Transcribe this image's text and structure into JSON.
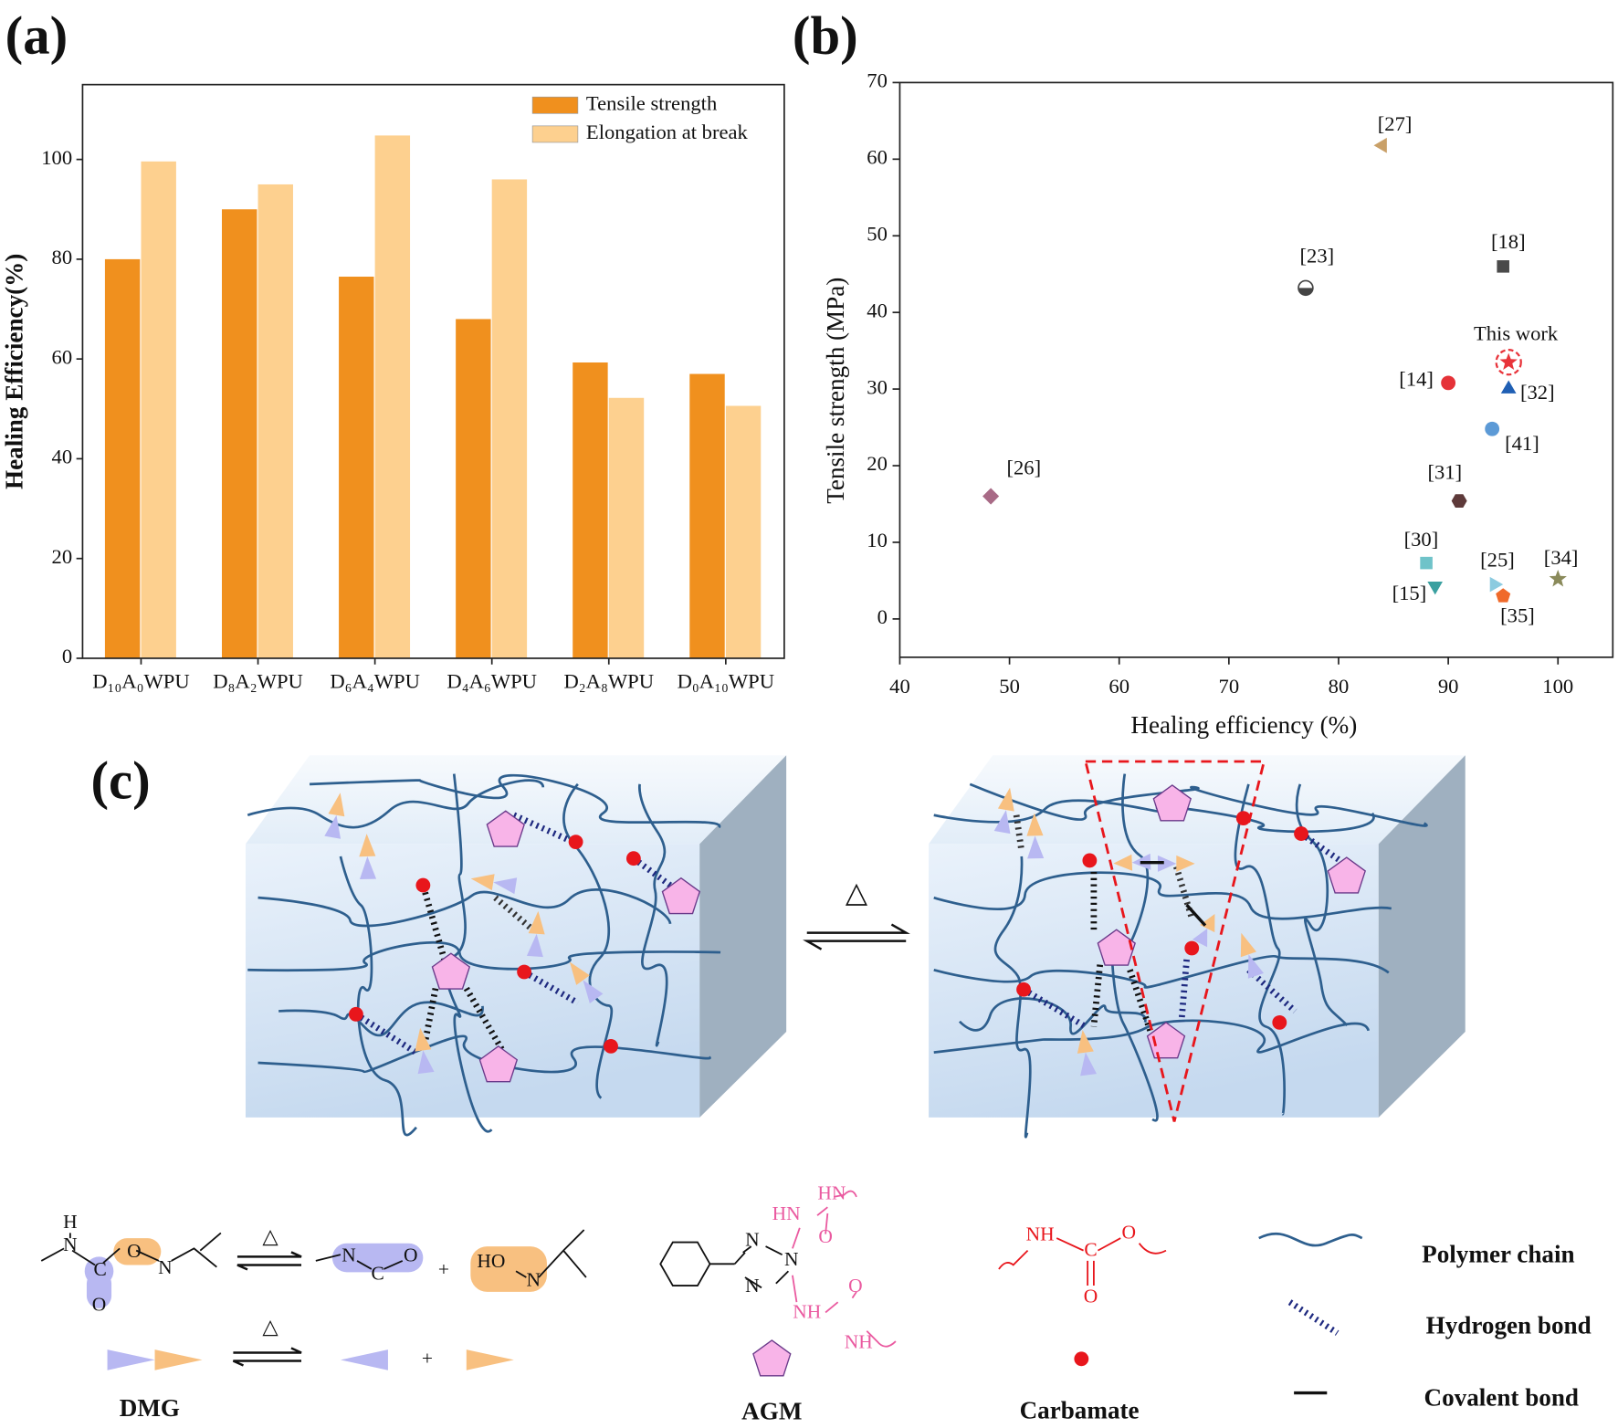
{
  "chart_data": [
    {
      "type": "bar",
      "panel_label": "(a)",
      "y_label": "Healing Efficiency(%)",
      "categories": [
        "D₁₀A₀WPU",
        "D₈A₂WPU",
        "D₆A₄WPU",
        "D₄A₆WPU",
        "D₂A₈WPU",
        "D₀A₁₀WPU"
      ],
      "series": [
        {
          "name": "Tensile strength",
          "color": "#f0901e",
          "values": [
            80,
            90,
            76.5,
            68,
            59.3,
            57
          ]
        },
        {
          "name": "Elongation at break",
          "color": "#fdd08f",
          "values": [
            99.6,
            95,
            104.8,
            96,
            52.2,
            50.6
          ]
        }
      ],
      "ylim": [
        0,
        115
      ],
      "yticks": [
        0,
        20,
        40,
        60,
        80,
        100
      ],
      "legend": "upper right"
    },
    {
      "type": "scatter",
      "panel_label": "(b)",
      "x_label": "Healing efficiency (%)",
      "y_label": "Tensile strength (MPa)",
      "points": [
        {
          "label": "[27]",
          "x": 84,
          "y": 61.8,
          "color": "#c9a068",
          "marker": "triangle-left"
        },
        {
          "label": "[23]",
          "x": 77,
          "y": 43.2,
          "color": "#444444",
          "marker": "half-circle"
        },
        {
          "label": "[18]",
          "x": 95,
          "y": 46,
          "color": "#4a4a4a",
          "marker": "square"
        },
        {
          "label": "This work",
          "x": 95.5,
          "y": 33.5,
          "color": "#e8333a",
          "marker": "star",
          "highlight": true
        },
        {
          "label": "[14]",
          "x": 90,
          "y": 30.8,
          "color": "#e53238",
          "marker": "circle"
        },
        {
          "label": "[32]",
          "x": 95.5,
          "y": 30,
          "color": "#1f5fb4",
          "marker": "triangle-up"
        },
        {
          "label": "[41]",
          "x": 94,
          "y": 24.8,
          "color": "#5c9ad6",
          "marker": "circle"
        },
        {
          "label": "[31]",
          "x": 91,
          "y": 15.4,
          "color": "#5e3a3a",
          "marker": "hexagon"
        },
        {
          "label": "[26]",
          "x": 48.3,
          "y": 16,
          "color": "#a86a86",
          "marker": "diamond"
        },
        {
          "label": "[30]",
          "x": 88,
          "y": 7.3,
          "color": "#6fc3c9",
          "marker": "square"
        },
        {
          "label": "[15]",
          "x": 88.8,
          "y": 4.3,
          "color": "#3aa0a0",
          "marker": "triangle-down"
        },
        {
          "label": "[25]",
          "x": 94.2,
          "y": 4.5,
          "color": "#8ccbe0",
          "marker": "triangle-right"
        },
        {
          "label": "[35]",
          "x": 95,
          "y": 3,
          "color": "#f06a2a",
          "marker": "pentagon"
        },
        {
          "label": "[34]",
          "x": 100,
          "y": 5.2,
          "color": "#8a8a5a",
          "marker": "star"
        }
      ],
      "xlim": [
        40,
        105
      ],
      "xticks": [
        40,
        50,
        60,
        70,
        80,
        90,
        100
      ],
      "ylim": [
        -5,
        70
      ],
      "yticks": [
        0,
        10,
        20,
        30,
        40,
        50,
        60,
        70
      ]
    }
  ],
  "diagram": {
    "panel_label": "(c)",
    "heat_symbol": "△",
    "legend": [
      "Polymer chain",
      "Hydrogen bond",
      "Covalent bond"
    ],
    "species": [
      "DMG",
      "AGM",
      "Carbamate"
    ],
    "chem_labels": [
      "H",
      "N",
      "O",
      "N",
      "C",
      "O",
      "N",
      "C",
      "O",
      "+",
      "HO",
      "N",
      "+",
      "N",
      "N",
      "N",
      "HN",
      "HN",
      "O",
      "O",
      "NH",
      "NH",
      "NH",
      "C",
      "O",
      "O"
    ]
  }
}
